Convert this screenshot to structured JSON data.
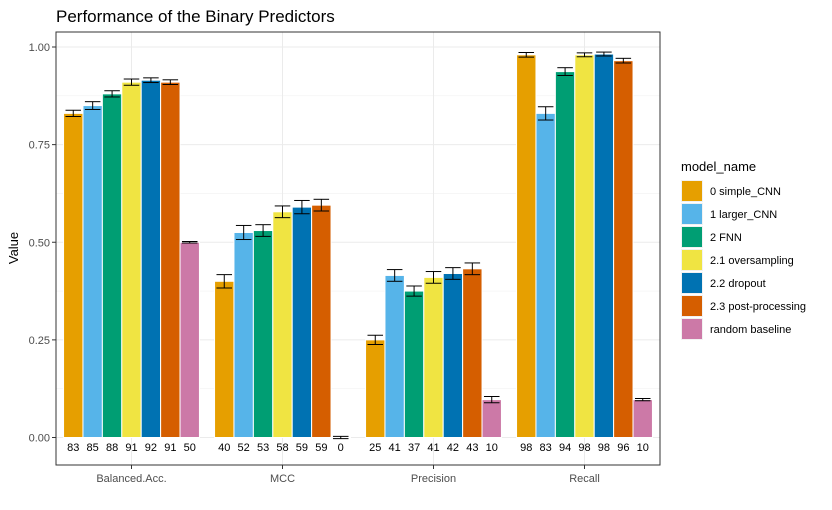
{
  "chart_data": {
    "type": "bar",
    "title": "Performance of the Binary Predictors",
    "xlabel": "",
    "ylabel": "Value",
    "ylim": [
      0,
      1.0
    ],
    "yticks": [
      "0.00",
      "0.25",
      "0.50",
      "0.75",
      "1.00"
    ],
    "grid": true,
    "legend_title": "model_name",
    "legend_position": "right",
    "categories": [
      "Balanced.Acc.",
      "MCC",
      "Precision",
      "Recall"
    ],
    "series": [
      {
        "name": "0 simple_CNN",
        "color": "#E69F00",
        "values": [
          0.83,
          0.4,
          0.25,
          0.98
        ],
        "errors": [
          0.008,
          0.017,
          0.012,
          0.006
        ],
        "labels": [
          "83",
          "40",
          "25",
          "98"
        ]
      },
      {
        "name": "1 larger_CNN",
        "color": "#56B4E9",
        "values": [
          0.85,
          0.525,
          0.415,
          0.83
        ],
        "errors": [
          0.01,
          0.018,
          0.015,
          0.017
        ],
        "labels": [
          "85",
          "52",
          "41",
          "83"
        ]
      },
      {
        "name": "2 FNN",
        "color": "#009E73",
        "values": [
          0.88,
          0.53,
          0.375,
          0.937
        ],
        "errors": [
          0.008,
          0.015,
          0.013,
          0.01
        ],
        "labels": [
          "88",
          "53",
          "37",
          "94"
        ]
      },
      {
        "name": "2.1 oversampling",
        "color": "#F0E442",
        "values": [
          0.91,
          0.578,
          0.41,
          0.98
        ],
        "errors": [
          0.008,
          0.015,
          0.015,
          0.005
        ],
        "labels": [
          "91",
          "58",
          "41",
          "98"
        ]
      },
      {
        "name": "2.2 dropout",
        "color": "#0072B2",
        "values": [
          0.915,
          0.59,
          0.42,
          0.982
        ],
        "errors": [
          0.006,
          0.017,
          0.015,
          0.005
        ],
        "labels": [
          "92",
          "59",
          "42",
          "98"
        ]
      },
      {
        "name": "2.3 post-processing",
        "color": "#D55E00",
        "values": [
          0.91,
          0.595,
          0.432,
          0.965
        ],
        "errors": [
          0.006,
          0.015,
          0.015,
          0.006
        ],
        "labels": [
          "91",
          "59",
          "43",
          "96"
        ]
      },
      {
        "name": "random baseline",
        "color": "#CC79A7",
        "values": [
          0.5,
          0.0,
          0.097,
          0.097
        ],
        "errors": [
          0.002,
          0.003,
          0.008,
          0.003
        ],
        "labels": [
          "50",
          "0",
          "10",
          "10"
        ]
      }
    ]
  }
}
